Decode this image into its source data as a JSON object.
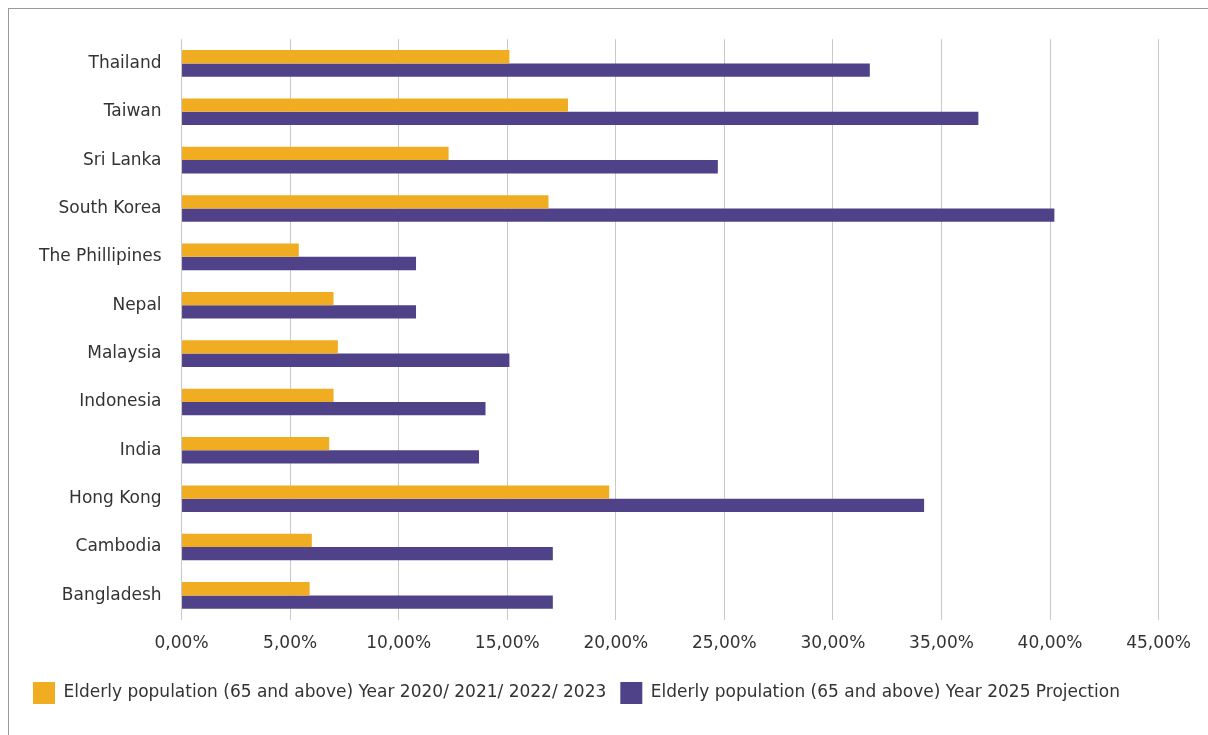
{
  "chart_data": {
    "type": "bar",
    "orientation": "horizontal",
    "categories": [
      "Thailand",
      "Taiwan",
      "Sri Lanka",
      "South Korea",
      "The Phillipines",
      "Nepal",
      "Malaysia",
      "Indonesia",
      "India",
      "Hong Kong",
      "Cambodia",
      "Bangladesh"
    ],
    "series": [
      {
        "name": "Elderly population (65 and above) Year 2020/ 2021/ 2022/ 2023",
        "color": "#f0ad22",
        "values": [
          15.1,
          17.8,
          12.3,
          16.9,
          5.4,
          7.0,
          7.2,
          7.0,
          6.8,
          19.7,
          6.0,
          5.9
        ]
      },
      {
        "name": "Elderly population (65 and above) Year 2025 Projection",
        "color": "#4f4288",
        "values": [
          31.7,
          36.7,
          24.7,
          40.2,
          10.8,
          10.8,
          15.1,
          14.0,
          13.7,
          34.2,
          17.1,
          17.1
        ]
      }
    ],
    "xlim": [
      0,
      45
    ],
    "xticks": [
      {
        "value": 0,
        "label": "0,00%"
      },
      {
        "value": 5,
        "label": "5,00%"
      },
      {
        "value": 10,
        "label": "10,00%"
      },
      {
        "value": 15,
        "label": "15,00%"
      },
      {
        "value": 20,
        "label": "20,00%"
      },
      {
        "value": 25,
        "label": "25,00%"
      },
      {
        "value": 30,
        "label": "30,00%"
      },
      {
        "value": 35,
        "label": "35,00%"
      },
      {
        "value": 40,
        "label": "40,00%"
      },
      {
        "value": 45,
        "label": "45,00%"
      }
    ],
    "grid": "x",
    "legend": "bottom left"
  }
}
